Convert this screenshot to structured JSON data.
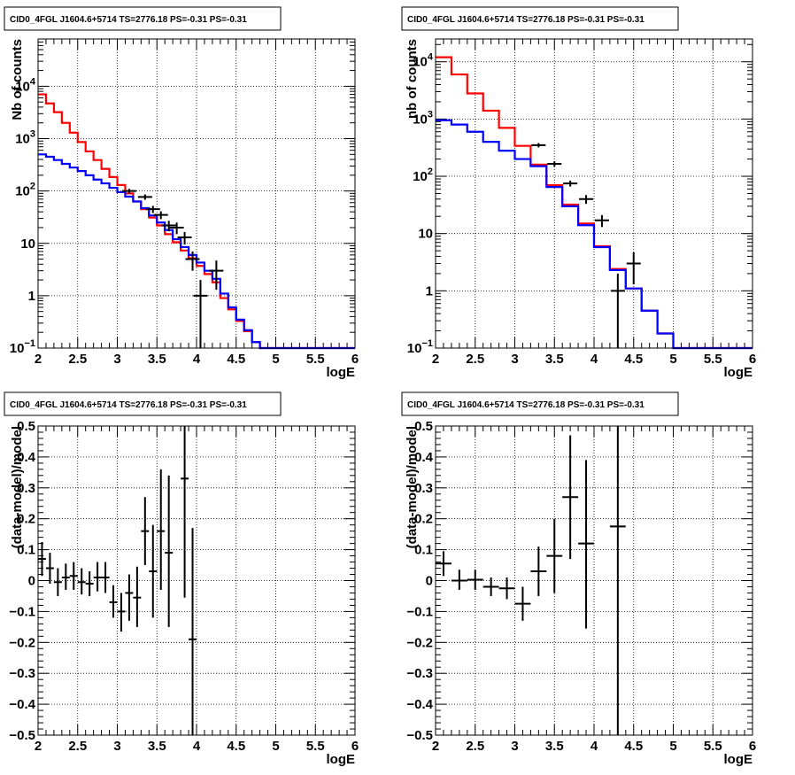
{
  "colors": {
    "model_total": "#ff0000",
    "model_source": "#0000ff",
    "data": "#000000"
  },
  "chart_data": [
    {
      "id": "counts-all",
      "type": "line",
      "title": "CID0_4FGL J1604.6+5714 TS=2776.18 PS=-0.31 PS=-0.31",
      "xlabel": "logE",
      "ylabel": "Nb of counts",
      "xlim": [
        2,
        6
      ],
      "ylim": [
        0.1,
        80000
      ],
      "yscale": "log",
      "grid": true,
      "xticks": [
        "2",
        "2.5",
        "3",
        "3.5",
        "4",
        "4.5",
        "5",
        "5.5",
        "6"
      ],
      "yticks": [
        {
          "value": 0.1,
          "base": "10",
          "exp": "−1"
        },
        {
          "value": 1,
          "label": "1"
        },
        {
          "value": 10,
          "label": "10"
        },
        {
          "value": 100,
          "base": "10",
          "exp": "2"
        },
        {
          "value": 1000,
          "base": "10",
          "exp": "3"
        },
        {
          "value": 10000,
          "base": "10",
          "exp": "4"
        }
      ],
      "bin_edges": [
        2.0,
        2.1,
        2.2,
        2.3,
        2.4,
        2.5,
        2.6,
        2.7,
        2.8,
        2.9,
        3.0,
        3.1,
        3.2,
        3.3,
        3.4,
        3.5,
        3.6,
        3.7,
        3.8,
        3.9,
        4.0,
        4.1,
        4.2,
        4.3,
        4.4,
        4.5,
        4.6,
        4.7,
        4.8,
        4.9,
        5.0,
        5.1,
        5.2,
        5.3,
        5.4,
        5.5,
        5.6,
        5.7,
        5.8,
        5.9,
        6.0
      ],
      "series": [
        {
          "role": "model_total",
          "values": [
            7000,
            4700,
            3200,
            2000,
            1300,
            860,
            570,
            390,
            265,
            185,
            130,
            90,
            63,
            45,
            31,
            22,
            15,
            10.5,
            7.3,
            5.2,
            3.7,
            2.6,
            1.8,
            0.9,
            0.55,
            0.33,
            0.21,
            0.13,
            0.1,
            0.1,
            0.1,
            0.1,
            0.1,
            0.1,
            0.1,
            0.1,
            0.1,
            0.1,
            0.1,
            0.1
          ]
        },
        {
          "role": "model_source",
          "values": [
            500,
            450,
            390,
            330,
            280,
            240,
            200,
            165,
            140,
            115,
            95,
            78,
            63,
            47,
            34,
            25,
            18,
            12,
            8.5,
            6,
            4.3,
            3,
            2.1,
            1.1,
            0.6,
            0.35,
            0.22,
            0.13,
            0.1,
            0.1,
            0.1,
            0.1,
            0.1,
            0.1,
            0.1,
            0.1,
            0.1,
            0.1,
            0.1,
            0.1
          ]
        },
        {
          "role": "data",
          "points": [
            {
              "x": 3.15,
              "y": 100,
              "ylo": 90,
              "yhi": 110
            },
            {
              "x": 3.35,
              "y": 77,
              "ylo": 68,
              "yhi": 86
            },
            {
              "x": 3.45,
              "y": 45,
              "ylo": 38,
              "yhi": 52
            },
            {
              "x": 3.55,
              "y": 35,
              "ylo": 29,
              "yhi": 41
            },
            {
              "x": 3.65,
              "y": 22,
              "ylo": 17,
              "yhi": 27
            },
            {
              "x": 3.75,
              "y": 20,
              "ylo": 15,
              "yhi": 25
            },
            {
              "x": 3.85,
              "y": 13,
              "ylo": 9.5,
              "yhi": 16.5
            },
            {
              "x": 3.95,
              "y": 5,
              "ylo": 3,
              "yhi": 7
            },
            {
              "x": 4.05,
              "y": 1,
              "ylo": 0.1,
              "yhi": 2
            },
            {
              "x": 4.25,
              "y": 3,
              "ylo": 1.3,
              "yhi": 4.7
            }
          ]
        }
      ]
    },
    {
      "id": "counts-coarse",
      "type": "line",
      "title": "CID0_4FGL J1604.6+5714 TS=2776.18 PS=-0.31 PS=-0.31",
      "xlabel": "logE",
      "ylabel": "nb of counts",
      "xlim": [
        2,
        6
      ],
      "ylim": [
        0.1,
        25000
      ],
      "yscale": "log",
      "grid": true,
      "xticks": [
        "2",
        "2.5",
        "3",
        "3.5",
        "4",
        "4.5",
        "5",
        "5.5",
        "6"
      ],
      "yticks": [
        {
          "value": 0.1,
          "base": "10",
          "exp": "−1"
        },
        {
          "value": 1,
          "label": "1"
        },
        {
          "value": 10,
          "label": "10"
        },
        {
          "value": 100,
          "base": "10",
          "exp": "2"
        },
        {
          "value": 1000,
          "base": "10",
          "exp": "3"
        },
        {
          "value": 10000,
          "base": "10",
          "exp": "4"
        }
      ],
      "bin_edges": [
        2.0,
        2.2,
        2.4,
        2.6,
        2.8,
        3.0,
        3.2,
        3.4,
        3.6,
        3.8,
        4.0,
        4.2,
        4.4,
        4.6,
        4.8,
        5.0,
        5.2,
        5.4,
        5.6,
        5.8,
        6.0
      ],
      "series": [
        {
          "role": "model_total",
          "values": [
            12000,
            6000,
            2800,
            1400,
            700,
            340,
            160,
            70,
            32,
            15,
            6,
            2.4,
            1.1,
            0.45,
            0.18,
            0.1,
            0.1,
            0.1,
            0.1,
            0.1
          ]
        },
        {
          "role": "model_source",
          "values": [
            950,
            800,
            600,
            400,
            280,
            200,
            150,
            65,
            30,
            14,
            5.8,
            2.3,
            1.1,
            0.45,
            0.18,
            0.1,
            0.1,
            0.1,
            0.1,
            0.1
          ]
        },
        {
          "role": "data",
          "points": [
            {
              "x": 3.3,
              "y": 350,
              "ylo": 320,
              "yhi": 380
            },
            {
              "x": 3.5,
              "y": 165,
              "ylo": 148,
              "yhi": 182
            },
            {
              "x": 3.7,
              "y": 75,
              "ylo": 66,
              "yhi": 84
            },
            {
              "x": 3.9,
              "y": 40,
              "ylo": 33,
              "yhi": 47
            },
            {
              "x": 4.1,
              "y": 17,
              "ylo": 13,
              "yhi": 21
            },
            {
              "x": 4.3,
              "y": 1,
              "ylo": 0.1,
              "yhi": 2
            },
            {
              "x": 4.5,
              "y": 3,
              "ylo": 1.3,
              "yhi": 4.7
            }
          ]
        }
      ]
    },
    {
      "id": "residuals-all",
      "type": "scatter",
      "title": "CID0_4FGL J1604.6+5714 TS=2776.18 PS=-0.31 PS=-0.31",
      "xlabel": "logE",
      "ylabel": "(data-model)/model",
      "xlim": [
        2,
        6
      ],
      "ylim": [
        -0.5,
        0.5
      ],
      "yscale": "linear",
      "grid": true,
      "xticks": [
        "2",
        "2.5",
        "3",
        "3.5",
        "4",
        "4.5",
        "5",
        "5.5",
        "6"
      ],
      "yticks": [
        {
          "value": 0.5,
          "label": "0.5"
        },
        {
          "value": 0.4,
          "label": "0.4"
        },
        {
          "value": 0.3,
          "label": "0.3"
        },
        {
          "value": 0.2,
          "label": "0.2"
        },
        {
          "value": 0.1,
          "label": "0.1"
        },
        {
          "value": 0,
          "label": "0"
        },
        {
          "value": -0.1,
          "label": "−0.1"
        },
        {
          "value": -0.2,
          "label": "−0.2"
        },
        {
          "value": -0.3,
          "label": "−0.3"
        },
        {
          "value": -0.4,
          "label": "−0.4"
        },
        {
          "value": -0.5,
          "label": "−0.5"
        }
      ],
      "series": [
        {
          "role": "data",
          "points": [
            {
              "x": 2.05,
              "y": 0.07,
              "ylo": 0.015,
              "yhi": 0.125,
              "xlo": 2.0,
              "xhi": 2.1
            },
            {
              "x": 2.15,
              "y": 0.04,
              "ylo": -0.01,
              "yhi": 0.09,
              "xlo": 2.1,
              "xhi": 2.2
            },
            {
              "x": 2.25,
              "y": -0.005,
              "ylo": -0.05,
              "yhi": 0.04,
              "xlo": 2.2,
              "xhi": 2.3
            },
            {
              "x": 2.35,
              "y": 0.01,
              "ylo": -0.03,
              "yhi": 0.055,
              "xlo": 2.3,
              "xhi": 2.4
            },
            {
              "x": 2.45,
              "y": 0.015,
              "ylo": -0.03,
              "yhi": 0.06,
              "xlo": 2.4,
              "xhi": 2.5
            },
            {
              "x": 2.55,
              "y": -0.005,
              "ylo": -0.045,
              "yhi": 0.04,
              "xlo": 2.5,
              "xhi": 2.6
            },
            {
              "x": 2.65,
              "y": -0.01,
              "ylo": -0.05,
              "yhi": 0.03,
              "xlo": 2.6,
              "xhi": 2.7
            },
            {
              "x": 2.75,
              "y": 0.01,
              "ylo": -0.035,
              "yhi": 0.06,
              "xlo": 2.7,
              "xhi": 2.8
            },
            {
              "x": 2.85,
              "y": 0.01,
              "ylo": -0.04,
              "yhi": 0.06,
              "xlo": 2.8,
              "xhi": 2.9
            },
            {
              "x": 2.95,
              "y": -0.07,
              "ylo": -0.12,
              "yhi": -0.015,
              "xlo": 2.9,
              "xhi": 3.0
            },
            {
              "x": 3.05,
              "y": -0.1,
              "ylo": -0.165,
              "yhi": -0.04,
              "xlo": 3.0,
              "xhi": 3.1
            },
            {
              "x": 3.15,
              "y": -0.04,
              "ylo": -0.13,
              "yhi": 0.02,
              "xlo": 3.1,
              "xhi": 3.2
            },
            {
              "x": 3.25,
              "y": -0.055,
              "ylo": -0.15,
              "yhi": 0.045,
              "xlo": 3.2,
              "xhi": 3.3
            },
            {
              "x": 3.35,
              "y": 0.16,
              "ylo": 0.05,
              "yhi": 0.27,
              "xlo": 3.3,
              "xhi": 3.4
            },
            {
              "x": 3.45,
              "y": 0.03,
              "ylo": -0.12,
              "yhi": 0.18,
              "xlo": 3.4,
              "xhi": 3.5
            },
            {
              "x": 3.55,
              "y": 0.16,
              "ylo": -0.03,
              "yhi": 0.36,
              "xlo": 3.5,
              "xhi": 3.6
            },
            {
              "x": 3.65,
              "y": 0.09,
              "ylo": -0.15,
              "yhi": 0.34,
              "xlo": 3.6,
              "xhi": 3.7
            },
            {
              "x": 3.85,
              "y": 0.33,
              "ylo": -0.055,
              "yhi": 0.5,
              "xlo": 3.8,
              "xhi": 3.9
            },
            {
              "x": 3.95,
              "y": -0.19,
              "ylo": -0.5,
              "yhi": 0.17,
              "xlo": 3.9,
              "xhi": 4.0
            }
          ]
        }
      ]
    },
    {
      "id": "residuals-coarse",
      "type": "scatter",
      "title": "CID0_4FGL J1604.6+5714 TS=2776.18 PS=-0.31 PS=-0.31",
      "xlabel": "logE",
      "ylabel": "(data-model)/model",
      "xlim": [
        2,
        6
      ],
      "ylim": [
        -0.5,
        0.5
      ],
      "yscale": "linear",
      "grid": true,
      "xticks": [
        "2",
        "2.5",
        "3",
        "3.5",
        "4",
        "4.5",
        "5",
        "5.5",
        "6"
      ],
      "yticks": [
        {
          "value": 0.5,
          "label": "0.5"
        },
        {
          "value": 0.4,
          "label": "0.4"
        },
        {
          "value": 0.3,
          "label": "0.3"
        },
        {
          "value": 0.2,
          "label": "0.2"
        },
        {
          "value": 0.1,
          "label": "0.1"
        },
        {
          "value": 0,
          "label": "0"
        },
        {
          "value": -0.1,
          "label": "−0.1"
        },
        {
          "value": -0.2,
          "label": "−0.2"
        },
        {
          "value": -0.3,
          "label": "−0.3"
        },
        {
          "value": -0.4,
          "label": "−0.4"
        },
        {
          "value": -0.5,
          "label": "−0.5"
        }
      ],
      "series": [
        {
          "role": "data",
          "points": [
            {
              "x": 2.1,
              "y": 0.055,
              "ylo": 0.015,
              "yhi": 0.095,
              "xlo": 2.0,
              "xhi": 2.2
            },
            {
              "x": 2.3,
              "y": 0.0,
              "ylo": -0.03,
              "yhi": 0.035,
              "xlo": 2.2,
              "xhi": 2.4
            },
            {
              "x": 2.5,
              "y": 0.003,
              "ylo": -0.03,
              "yhi": 0.035,
              "xlo": 2.4,
              "xhi": 2.6
            },
            {
              "x": 2.7,
              "y": -0.02,
              "ylo": -0.05,
              "yhi": 0.01,
              "xlo": 2.6,
              "xhi": 2.8
            },
            {
              "x": 2.9,
              "y": -0.025,
              "ylo": -0.06,
              "yhi": 0.01,
              "xlo": 2.8,
              "xhi": 3.0
            },
            {
              "x": 3.1,
              "y": -0.075,
              "ylo": -0.13,
              "yhi": -0.02,
              "xlo": 3.0,
              "xhi": 3.2
            },
            {
              "x": 3.3,
              "y": 0.03,
              "ylo": -0.05,
              "yhi": 0.11,
              "xlo": 3.2,
              "xhi": 3.4
            },
            {
              "x": 3.5,
              "y": 0.08,
              "ylo": -0.04,
              "yhi": 0.2,
              "xlo": 3.4,
              "xhi": 3.6
            },
            {
              "x": 3.7,
              "y": 0.27,
              "ylo": 0.07,
              "yhi": 0.47,
              "xlo": 3.6,
              "xhi": 3.8
            },
            {
              "x": 3.9,
              "y": 0.12,
              "ylo": -0.155,
              "yhi": 0.39,
              "xlo": 3.8,
              "xhi": 4.0
            },
            {
              "x": 4.3,
              "y": 0.175,
              "ylo": -0.5,
              "yhi": 0.5,
              "xlo": 4.2,
              "xhi": 4.4
            }
          ]
        }
      ]
    }
  ]
}
